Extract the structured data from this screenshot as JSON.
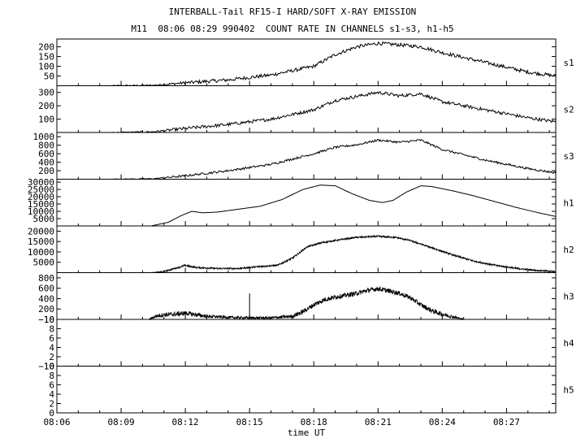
{
  "header": {
    "title": "INTERBALL-Tail RF15-I HARD/SOFT X-RAY EMISSION",
    "subtitle": "M11  08:06 08:29 990402  COUNT RATE IN CHANNELS s1-s3, h1-h5"
  },
  "chart_data": {
    "type": "line",
    "title": "INTERBALL-Tail RF15-I HARD/SOFT X-RAY EMISSION",
    "subtitle": "M11  08:06 08:29 990402  COUNT RATE IN CHANNELS s1-s3, h1-h5",
    "xlabel": "time UT",
    "x_ticks": [
      "08:06",
      "08:09",
      "08:12",
      "08:15",
      "08:18",
      "08:21",
      "08:24",
      "08:27"
    ],
    "x_tick_minutes": [
      0,
      3,
      6,
      9,
      12,
      15,
      18,
      21
    ],
    "xlim_minutes": [
      0,
      23.3
    ],
    "x_unit": "minutes after 08:06 UT",
    "panels": [
      {
        "name": "s1",
        "ylim": [
          0,
          240
        ],
        "yticks": [
          50,
          100,
          150,
          200
        ],
        "noise": 9,
        "points": [
          [
            2.5,
            0
          ],
          [
            4.5,
            2
          ],
          [
            6,
            15
          ],
          [
            8,
            30
          ],
          [
            10,
            55
          ],
          [
            12,
            100
          ],
          [
            13,
            160
          ],
          [
            14,
            200
          ],
          [
            15,
            218
          ],
          [
            16,
            210
          ],
          [
            17,
            200
          ],
          [
            18,
            170
          ],
          [
            20,
            120
          ],
          [
            22,
            70
          ],
          [
            23.3,
            50
          ]
        ]
      },
      {
        "name": "s2",
        "ylim": [
          0,
          350
        ],
        "yticks": [
          100,
          200,
          300
        ],
        "noise": 12,
        "points": [
          [
            2.5,
            0
          ],
          [
            4.5,
            5
          ],
          [
            6,
            30
          ],
          [
            8,
            60
          ],
          [
            10,
            100
          ],
          [
            12,
            170
          ],
          [
            13,
            240
          ],
          [
            14,
            270
          ],
          [
            15,
            300
          ],
          [
            16,
            275
          ],
          [
            17,
            290
          ],
          [
            18,
            230
          ],
          [
            20,
            170
          ],
          [
            22,
            110
          ],
          [
            23.3,
            80
          ]
        ]
      },
      {
        "name": "s3",
        "ylim": [
          0,
          1100
        ],
        "yticks": [
          200,
          400,
          600,
          800,
          1000
        ],
        "noise": 25,
        "points": [
          [
            2.5,
            0
          ],
          [
            4.5,
            10
          ],
          [
            6,
            80
          ],
          [
            8,
            200
          ],
          [
            10,
            350
          ],
          [
            12,
            600
          ],
          [
            13,
            750
          ],
          [
            14,
            810
          ],
          [
            15,
            920
          ],
          [
            16,
            870
          ],
          [
            17,
            920
          ],
          [
            18,
            700
          ],
          [
            20,
            450
          ],
          [
            22,
            250
          ],
          [
            23.3,
            150
          ]
        ]
      },
      {
        "name": "h1",
        "ylim": [
          0,
          32000
        ],
        "yticks": [
          5000,
          10000,
          15000,
          20000,
          25000,
          30000
        ],
        "noise": 0,
        "points": [
          [
            3.5,
            0
          ],
          [
            4.4,
            0
          ],
          [
            5.2,
            2500
          ],
          [
            5.8,
            7000
          ],
          [
            6.3,
            10000
          ],
          [
            6.8,
            9000
          ],
          [
            7.5,
            9500
          ],
          [
            8.5,
            11500
          ],
          [
            9.5,
            13500
          ],
          [
            10.5,
            18000
          ],
          [
            11.5,
            25000
          ],
          [
            12.3,
            28000
          ],
          [
            13,
            27500
          ],
          [
            13.8,
            22000
          ],
          [
            14.6,
            17500
          ],
          [
            15.2,
            16000
          ],
          [
            15.7,
            17500
          ],
          [
            16.3,
            23000
          ],
          [
            17,
            27500
          ],
          [
            17.5,
            27000
          ],
          [
            18.5,
            24000
          ],
          [
            19.5,
            20500
          ],
          [
            20.5,
            16500
          ],
          [
            21.5,
            12500
          ],
          [
            22.5,
            9000
          ],
          [
            23.3,
            6500
          ]
        ]
      },
      {
        "name": "h2",
        "ylim": [
          0,
          22500
        ],
        "yticks": [
          5000,
          10000,
          15000,
          20000
        ],
        "noise": 400,
        "points": [
          [
            4.4,
            0
          ],
          [
            5,
            500
          ],
          [
            5.5,
            2000
          ],
          [
            6,
            3500
          ],
          [
            6.5,
            2500
          ],
          [
            7.5,
            2000
          ],
          [
            8.5,
            2000
          ],
          [
            9.5,
            3000
          ],
          [
            10.3,
            3500
          ],
          [
            11,
            7000
          ],
          [
            11.7,
            12500
          ],
          [
            12.4,
            14500
          ],
          [
            13,
            15500
          ],
          [
            14,
            17000
          ],
          [
            15,
            17500
          ],
          [
            15.8,
            17000
          ],
          [
            16.5,
            15500
          ],
          [
            17.5,
            12000
          ],
          [
            18.5,
            8500
          ],
          [
            19.5,
            5500
          ],
          [
            20.5,
            3500
          ],
          [
            21.5,
            2000
          ],
          [
            22.5,
            1000
          ],
          [
            23.3,
            500
          ]
        ]
      },
      {
        "name": "h3",
        "ylim": [
          0,
          900
        ],
        "yticks": [
          200,
          400,
          600,
          800
        ],
        "noise": 45,
        "points": [
          [
            4.3,
            0
          ],
          [
            4.6,
            60
          ],
          [
            5,
            90
          ],
          [
            5.5,
            100
          ],
          [
            6,
            120
          ],
          [
            6.5,
            90
          ],
          [
            7,
            60
          ],
          [
            8,
            40
          ],
          [
            9,
            30
          ],
          [
            10,
            30
          ],
          [
            11,
            60
          ],
          [
            11.5,
            150
          ],
          [
            12,
            280
          ],
          [
            12.5,
            380
          ],
          [
            13,
            430
          ],
          [
            14,
            500
          ],
          [
            14.5,
            560
          ],
          [
            15,
            590
          ],
          [
            15.5,
            550
          ],
          [
            16,
            500
          ],
          [
            16.5,
            420
          ],
          [
            17,
            280
          ],
          [
            17.5,
            170
          ],
          [
            18,
            100
          ],
          [
            18.5,
            50
          ],
          [
            19,
            0
          ]
        ]
      },
      {
        "name": "h4",
        "ylim": [
          0,
          10
        ],
        "yticks": [
          0,
          2,
          4,
          6,
          8,
          10
        ],
        "points": []
      },
      {
        "name": "h5",
        "ylim": [
          0,
          10
        ],
        "yticks": [
          0,
          2,
          4,
          6,
          8,
          10
        ],
        "points": []
      }
    ]
  }
}
